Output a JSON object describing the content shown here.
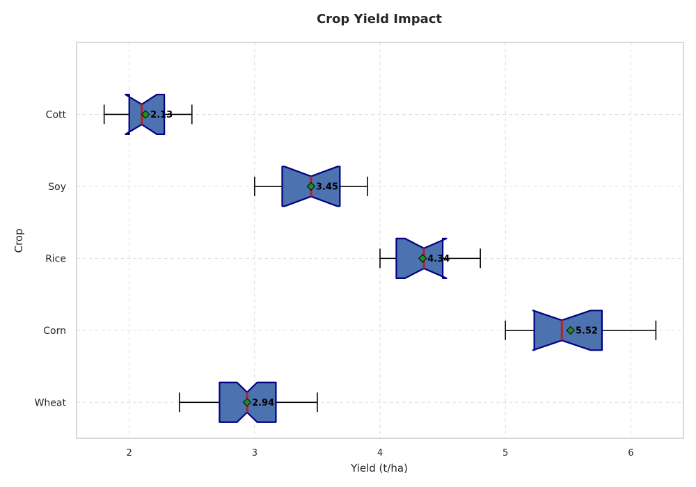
{
  "chart_data": {
    "type": "boxplot",
    "orientation": "horizontal",
    "notched": true,
    "title": "Crop Yield Impact",
    "xlabel": "Yield (t/ha)",
    "ylabel": "Crop",
    "xlim": [
      1.58,
      6.42
    ],
    "x_ticks": [
      2,
      3,
      4,
      5,
      6
    ],
    "grid": true,
    "colors": {
      "box_fill": "#4c72b0",
      "box_edge": "#000080",
      "median": "#b22222",
      "mean_marker": "#228b22",
      "whisker": "#000000",
      "grid": "#dddddd",
      "frame": "#cccccc"
    },
    "series": [
      {
        "category": "Wheat",
        "whisker_low": 2.4,
        "q1": 2.72,
        "median": 2.94,
        "q3": 3.17,
        "whisker_high": 3.5,
        "notch_low": 2.86,
        "notch_high": 3.02,
        "mean": 2.94,
        "mean_label": "2.94"
      },
      {
        "category": "Corn",
        "whisker_low": 5.0,
        "q1": 5.23,
        "median": 5.45,
        "q3": 5.77,
        "whisker_high": 6.2,
        "notch_low": 5.22,
        "notch_high": 5.68,
        "mean": 5.52,
        "mean_label": "5.52"
      },
      {
        "category": "Rice",
        "whisker_low": 4.0,
        "q1": 4.13,
        "median": 4.35,
        "q3": 4.5,
        "whisker_high": 4.8,
        "notch_low": 4.2,
        "notch_high": 4.53,
        "mean": 4.34,
        "mean_label": "4.34"
      },
      {
        "category": "Soy",
        "whisker_low": 3.0,
        "q1": 3.22,
        "median": 3.45,
        "q3": 3.68,
        "whisker_high": 3.9,
        "notch_low": 3.24,
        "notch_high": 3.66,
        "mean": 3.45,
        "mean_label": "3.45"
      },
      {
        "category": "Cott",
        "whisker_low": 1.8,
        "q1": 2.0,
        "median": 2.1,
        "q3": 2.28,
        "whisker_high": 2.5,
        "notch_low": 1.97,
        "notch_high": 2.22,
        "mean": 2.13,
        "mean_label": "2.13"
      }
    ]
  }
}
